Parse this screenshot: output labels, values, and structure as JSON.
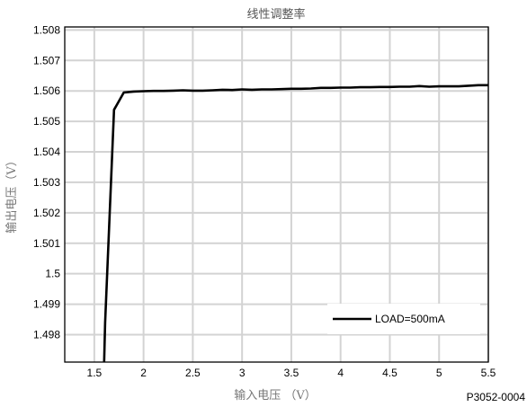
{
  "chart_data": {
    "type": "line",
    "title": "线性调整率",
    "xlabel": "输入电压 （V）",
    "ylabel": "输出电压（V）",
    "xlim": [
      1.2,
      5.5
    ],
    "ylim": [
      1.4971,
      1.5081
    ],
    "xticks": [
      "1.5",
      "2",
      "2.5",
      "3",
      "3.5",
      "4",
      "4.5",
      "5",
      "5.5"
    ],
    "xtick_values": [
      1.5,
      2,
      2.5,
      3,
      3.5,
      4,
      4.5,
      5,
      5.5
    ],
    "yticks": [
      "1.508",
      "1.507",
      "1.506",
      "1.505",
      "1.504",
      "1.503",
      "1.502",
      "1.501",
      "1.5",
      "1.499",
      "1.498"
    ],
    "ytick_values": [
      1.508,
      1.507,
      1.506,
      1.505,
      1.504,
      1.503,
      1.502,
      1.501,
      1.5,
      1.499,
      1.498
    ],
    "grid": true,
    "legend_position": "bottom-right",
    "series": [
      {
        "name": "LOAD=500mA",
        "color": "#000000",
        "x": [
          1.6,
          1.61,
          1.7,
          1.8,
          1.9,
          2.0,
          2.1,
          2.2,
          2.3,
          2.4,
          2.5,
          2.6,
          2.7,
          2.8,
          2.9,
          3.0,
          3.1,
          3.2,
          3.3,
          3.4,
          3.5,
          3.6,
          3.7,
          3.8,
          3.9,
          4.0,
          4.1,
          4.2,
          4.3,
          4.4,
          4.5,
          4.6,
          4.7,
          4.8,
          4.9,
          5.0,
          5.1,
          5.2,
          5.3,
          5.4,
          5.5
        ],
        "values": [
          1.4971,
          1.4984,
          1.50538,
          1.50595,
          1.50598,
          1.50599,
          1.506,
          1.506,
          1.50601,
          1.50602,
          1.50601,
          1.50601,
          1.50602,
          1.50604,
          1.50603,
          1.50605,
          1.50604,
          1.50605,
          1.50605,
          1.50606,
          1.50607,
          1.50607,
          1.50608,
          1.5061,
          1.5061,
          1.50611,
          1.50611,
          1.50612,
          1.50612,
          1.50613,
          1.50613,
          1.50614,
          1.50614,
          1.50616,
          1.50614,
          1.50615,
          1.50615,
          1.50615,
          1.50617,
          1.50619,
          1.50619
        ]
      }
    ]
  },
  "figure_code": "P3052-0004"
}
